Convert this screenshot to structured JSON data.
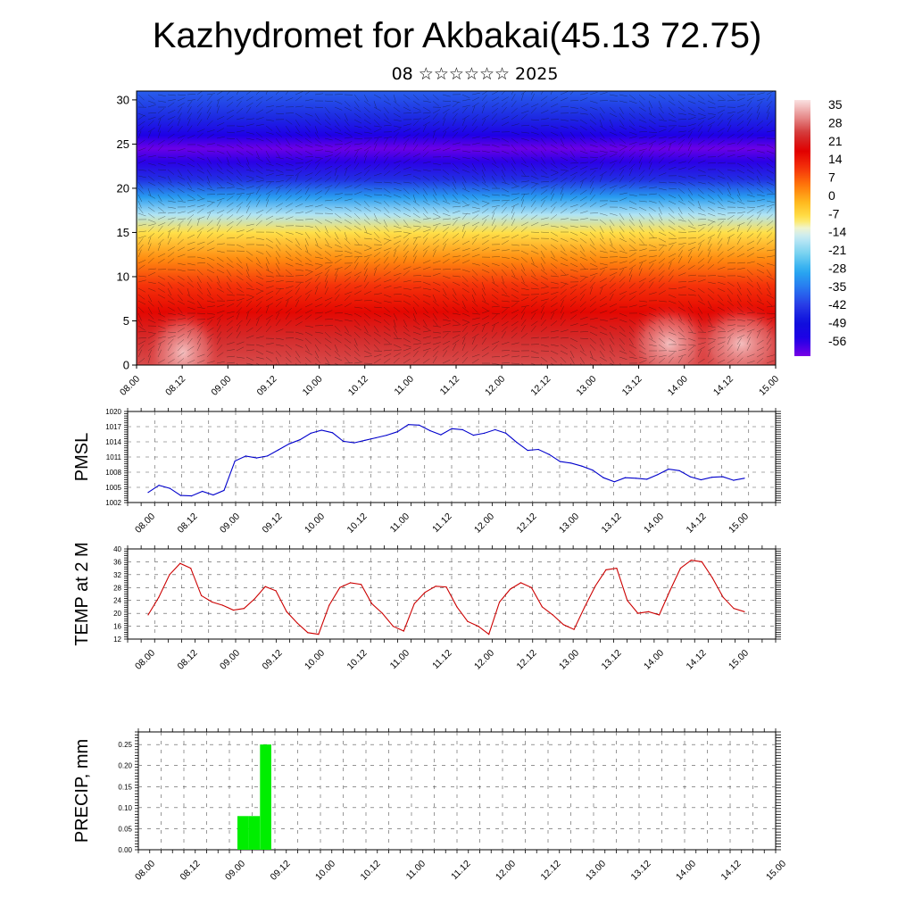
{
  "title": "Kazhydromet for Akbakai(45.13 72.75)",
  "subtitle": "08 ☆☆☆☆☆☆ 2025",
  "colors": {
    "pmsl_line": "#0000cc",
    "temp_line": "#cc0000",
    "precip_bar": "#00ee00"
  },
  "chart_data": [
    {
      "type": "heatmap",
      "name": "altitude-temperature-wind",
      "x_tick_labels": [
        "08.00",
        "08.12",
        "09.00",
        "09.12",
        "10.00",
        "10.12",
        "11.00",
        "11.12",
        "12.00",
        "12.12",
        "13.00",
        "13.12",
        "14.00",
        "14.12",
        "15.00"
      ],
      "y_ticks": [
        0,
        5,
        10,
        15,
        20,
        25,
        30
      ],
      "ylim": [
        0,
        31
      ],
      "colorbar_labels": [
        35,
        28,
        21,
        14,
        7,
        0,
        -7,
        -14,
        -21,
        -28,
        -35,
        -42,
        -49,
        -56
      ],
      "colorbar_range": [
        -63,
        42
      ],
      "profile": [
        {
          "level": 0,
          "value": 30
        },
        {
          "level": 3,
          "value": 27
        },
        {
          "level": 6,
          "value": 20
        },
        {
          "level": 9,
          "value": 14
        },
        {
          "level": 12,
          "value": 5
        },
        {
          "level": 15,
          "value": -6
        },
        {
          "level": 17,
          "value": -16
        },
        {
          "level": 19,
          "value": -30
        },
        {
          "level": 21,
          "value": -44
        },
        {
          "level": 23,
          "value": -57
        },
        {
          "level": 24.5,
          "value": -62
        },
        {
          "level": 26,
          "value": -56
        },
        {
          "level": 28,
          "value": -45
        },
        {
          "level": 31,
          "value": -38
        }
      ]
    },
    {
      "type": "line",
      "name": "PMSL",
      "ylabel": "PMSL",
      "x_tick_labels": [
        "08.00",
        "08.12",
        "09.00",
        "09.12",
        "10.00",
        "10.12",
        "11.00",
        "11.12",
        "12.00",
        "12.12",
        "13.00",
        "13.12",
        "14.00",
        "14.12",
        "15.00"
      ],
      "ylim": [
        1002,
        1020
      ],
      "y_ticks": [
        1002,
        1005,
        1008,
        1011,
        1014,
        1017,
        1020
      ],
      "values": [
        1004,
        1005.4,
        1004.8,
        1003.4,
        1003.3,
        1004.2,
        1003.5,
        1004.4,
        1010.2,
        1011.2,
        1010.8,
        1011.2,
        1012.4,
        1013.6,
        1014.4,
        1015.7,
        1016.3,
        1015.8,
        1014.1,
        1013.8,
        1014.3,
        1014.8,
        1015.3,
        1016.0,
        1017.4,
        1017.3,
        1016.2,
        1015.4,
        1016.6,
        1016.4,
        1015.3,
        1015.7,
        1016.4,
        1015.7,
        1013.9,
        1012.3,
        1012.5,
        1011.5,
        1010.1,
        1009.8,
        1009.2,
        1008.4,
        1006.9,
        1006.1,
        1006.9,
        1006.8,
        1006.6,
        1007.5,
        1008.6,
        1008.3,
        1007.1,
        1006.5,
        1007.0,
        1007.1,
        1006.4,
        1006.8
      ]
    },
    {
      "type": "line",
      "name": "TEMP",
      "ylabel": "TEMP at 2 M",
      "x_tick_labels": [
        "08.00",
        "08.12",
        "09.00",
        "09.12",
        "10.00",
        "10.12",
        "11.00",
        "11.12",
        "12.00",
        "12.12",
        "13.00",
        "13.12",
        "14.00",
        "14.12",
        "15.00"
      ],
      "ylim": [
        12,
        40
      ],
      "y_ticks": [
        12,
        16,
        20,
        24,
        28,
        32,
        36,
        40
      ],
      "values": [
        19.5,
        25,
        32,
        35.5,
        34,
        25.5,
        23.5,
        22.5,
        21,
        21.5,
        24.5,
        28.3,
        27,
        20.5,
        17,
        14,
        13.5,
        22.5,
        28,
        29.5,
        29,
        23,
        20,
        16,
        14.5,
        23,
        26.5,
        28.4,
        28.2,
        22,
        17.5,
        16,
        13.5,
        23.5,
        27.5,
        29.5,
        28,
        22,
        19.5,
        16.5,
        15,
        22,
        28.5,
        33.5,
        34,
        24,
        20,
        20.5,
        19.5,
        27,
        34,
        36.5,
        36,
        31,
        25,
        21.5,
        20.5
      ]
    },
    {
      "type": "bar",
      "name": "PRECIP",
      "ylabel": "PRECIP, mm",
      "x_tick_labels": [
        "08.00",
        "08.12",
        "09.00",
        "09.12",
        "10.00",
        "10.12",
        "11.00",
        "11.12",
        "12.00",
        "12.12",
        "13.00",
        "13.12",
        "14.00",
        "14.12",
        "15.00"
      ],
      "ylim": [
        0,
        0.28
      ],
      "y_ticks": [
        "0.00",
        "0.05",
        "0.10",
        "0.15",
        "0.20",
        "0.25"
      ],
      "bars": [
        {
          "x_start": 1.0,
          "x_end": 1.125,
          "value": 0.08
        },
        {
          "x_start": 1.125,
          "x_end": 1.25,
          "value": 0.08
        },
        {
          "x_start": 1.25,
          "x_end": 1.375,
          "value": 0.25
        }
      ]
    }
  ]
}
